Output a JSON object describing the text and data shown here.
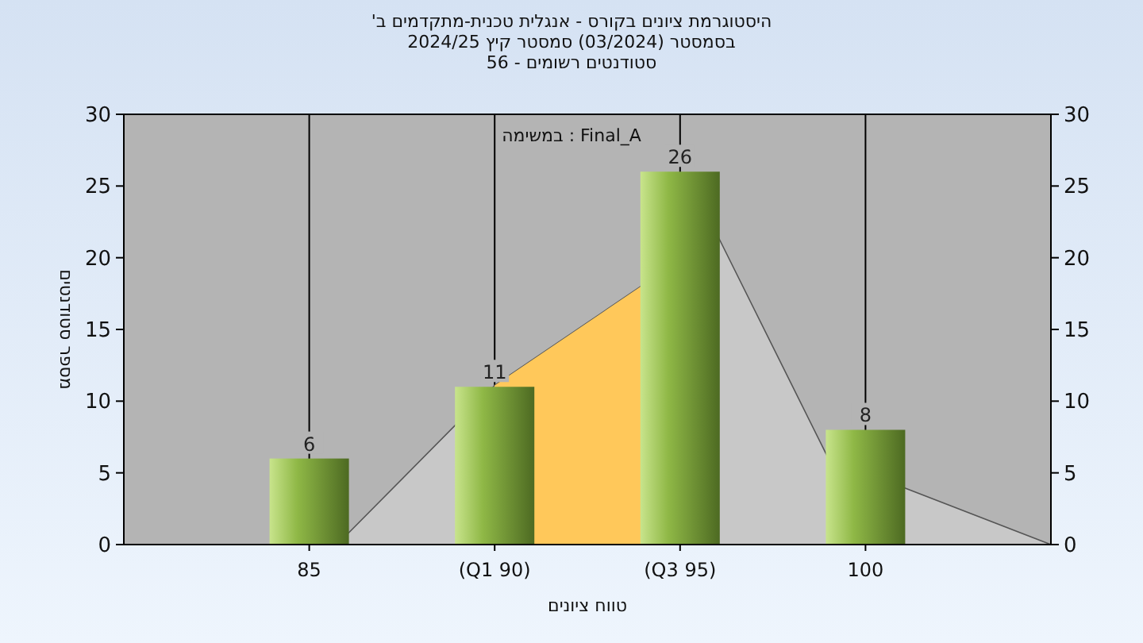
{
  "chart_data": {
    "type": "bar",
    "title": "היסטוגרמת ציונים בקורס - אנגלית טכנית-מתקדמים ב'",
    "subtitle": "בסמסטר (03/2024) סמסטר קיץ 2024/25\nסטודנטים רשומים - 56",
    "annotations": [
      "במשימה : Final_A"
    ],
    "xlabel": "טווח ציונים",
    "ylabel": "מספר סטודנטים",
    "categories": [
      "85",
      "(Q1 90)",
      "(Q3 95)",
      "100"
    ],
    "series": [
      {
        "color": "#8fb846",
        "values": [
          6,
          11,
          26,
          8
        ]
      }
    ],
    "data_labels": true,
    "ylim": [
      0,
      30
    ],
    "yticks": [
      0,
      5,
      10,
      15,
      20,
      25,
      30
    ],
    "y2lim": [
      0,
      30
    ],
    "y2ticks": [
      0,
      5,
      10,
      15,
      20,
      25,
      30
    ],
    "bands": [
      {
        "axis": "x",
        "from": "(Q1 90)",
        "to": "(Q3 95)",
        "color": "#ffc85a"
      }
    ],
    "grid": "x"
  }
}
